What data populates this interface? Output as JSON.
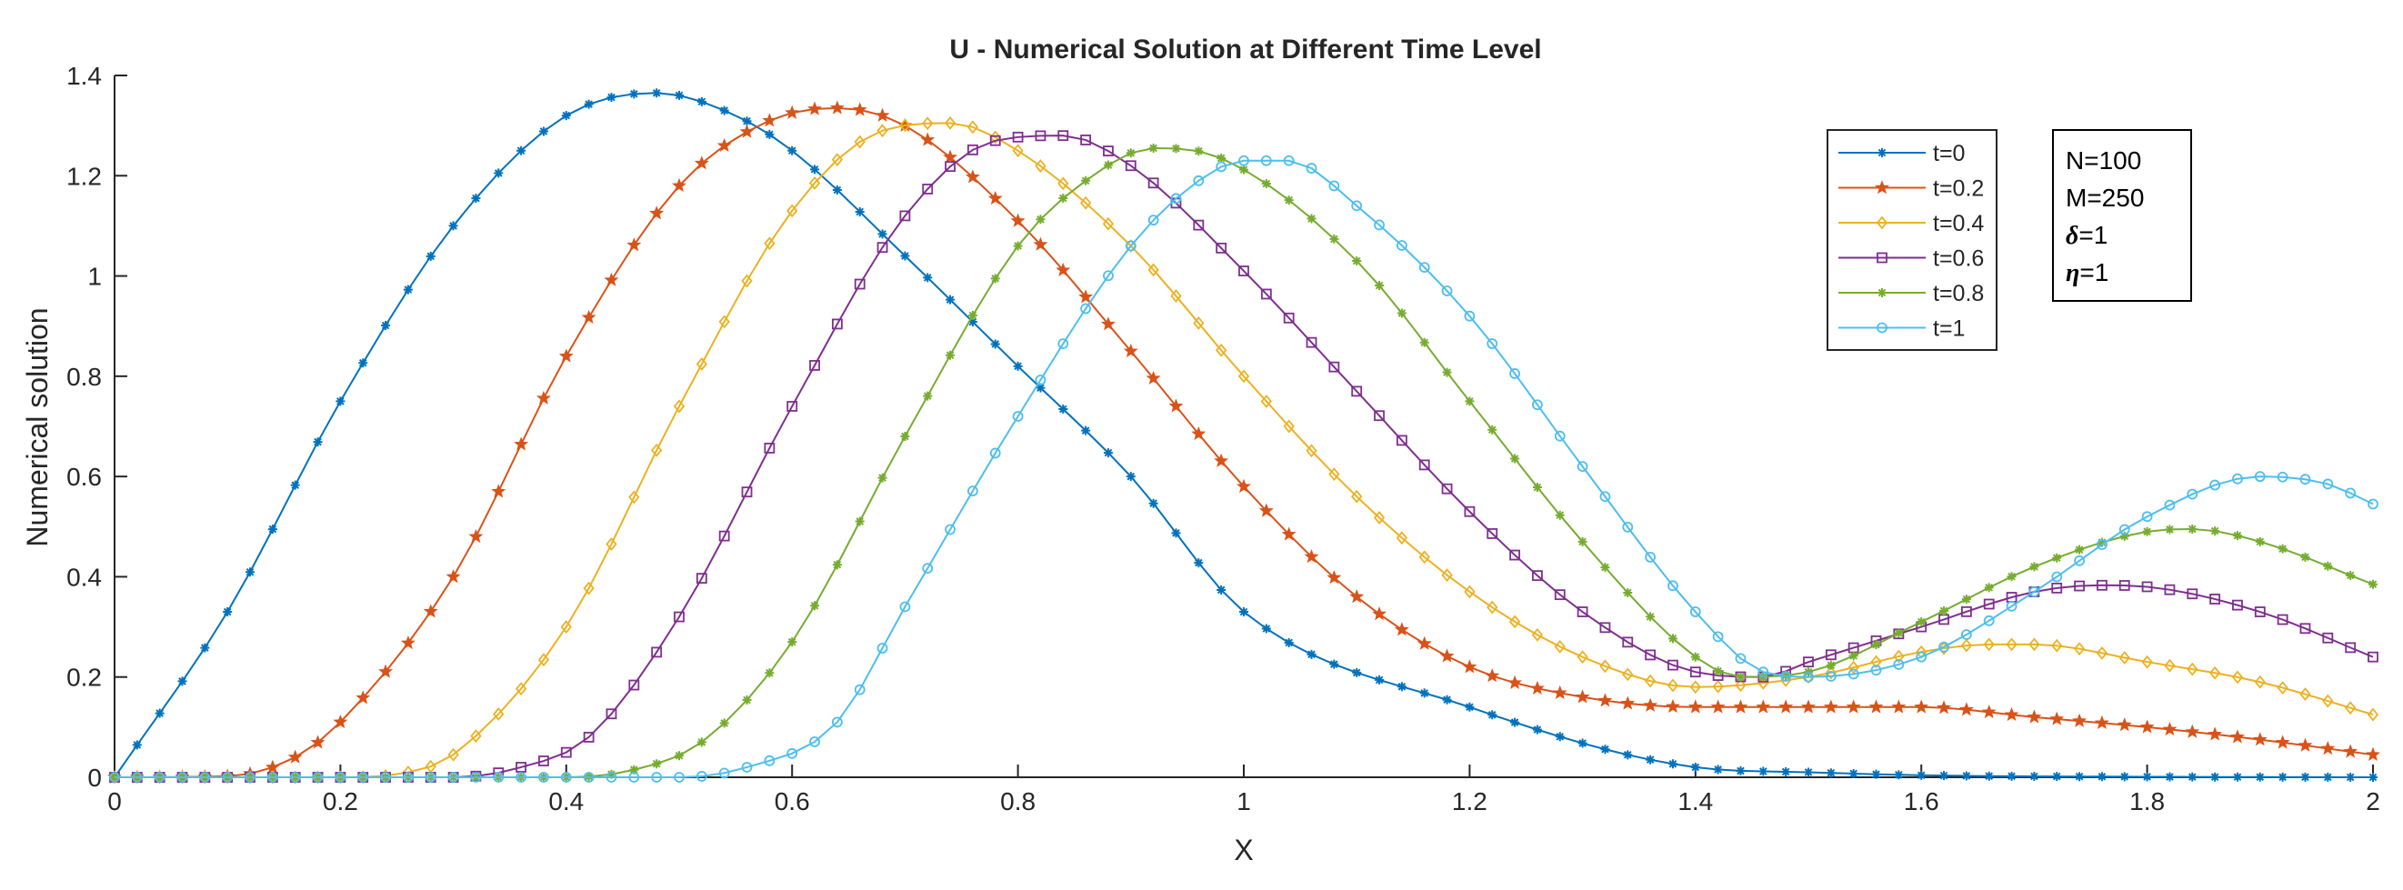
{
  "chart_data": {
    "type": "line",
    "title": "U - Numerical Solution at Different Time Level",
    "xlabel": "X",
    "ylabel": "Numerical solution",
    "xlim": [
      0,
      2
    ],
    "ylim": [
      0,
      1.4
    ],
    "xticks": [
      0,
      0.2,
      0.4,
      0.6,
      0.8,
      1,
      1.2,
      1.4,
      1.6,
      1.8,
      2
    ],
    "xtick_labels": [
      "0",
      "0.2",
      "0.4",
      "0.6",
      "0.8",
      "1",
      "1.2",
      "1.4",
      "1.6",
      "1.8",
      "2"
    ],
    "yticks": [
      0,
      0.2,
      0.4,
      0.6,
      0.8,
      1,
      1.2,
      1.4
    ],
    "ytick_labels": [
      "0",
      "0.2",
      "0.4",
      "0.6",
      "0.8",
      "1",
      "1.2",
      "1.4"
    ],
    "grid": false,
    "legend_position": "top-right",
    "x_step": 0.02,
    "series": [
      {
        "name": "t=0",
        "color": "#0072BD",
        "marker": "asterisk",
        "knots": [
          [
            0,
            0
          ],
          [
            0.1,
            0.33
          ],
          [
            0.2,
            0.75
          ],
          [
            0.3,
            1.1
          ],
          [
            0.4,
            1.32
          ],
          [
            0.48,
            1.365
          ],
          [
            0.55,
            1.32
          ],
          [
            0.6,
            1.25
          ],
          [
            0.7,
            1.04
          ],
          [
            0.8,
            0.82
          ],
          [
            0.9,
            0.6
          ],
          [
            1.0,
            0.33
          ],
          [
            1.2,
            0.14
          ],
          [
            1.4,
            0.02
          ],
          [
            1.5,
            0.01
          ],
          [
            1.6,
            0.004
          ],
          [
            1.8,
            0.001
          ],
          [
            2.0,
            0.0
          ]
        ]
      },
      {
        "name": "t=0.2",
        "color": "#D95319",
        "marker": "star",
        "knots": [
          [
            0,
            0
          ],
          [
            0.1,
            0.002
          ],
          [
            0.16,
            0.04
          ],
          [
            0.2,
            0.11
          ],
          [
            0.3,
            0.4
          ],
          [
            0.4,
            0.84
          ],
          [
            0.5,
            1.18
          ],
          [
            0.58,
            1.31
          ],
          [
            0.64,
            1.335
          ],
          [
            0.7,
            1.3
          ],
          [
            0.8,
            1.11
          ],
          [
            0.9,
            0.85
          ],
          [
            1.0,
            0.58
          ],
          [
            1.1,
            0.36
          ],
          [
            1.2,
            0.22
          ],
          [
            1.3,
            0.16
          ],
          [
            1.4,
            0.14
          ],
          [
            1.5,
            0.14
          ],
          [
            1.6,
            0.14
          ],
          [
            1.7,
            0.12
          ],
          [
            1.8,
            0.1
          ],
          [
            1.9,
            0.075
          ],
          [
            2.0,
            0.045
          ]
        ]
      },
      {
        "name": "t=0.4",
        "color": "#EDB120",
        "marker": "diamond",
        "knots": [
          [
            0,
            0
          ],
          [
            0.2,
            0.0
          ],
          [
            0.26,
            0.01
          ],
          [
            0.3,
            0.045
          ],
          [
            0.4,
            0.3
          ],
          [
            0.5,
            0.74
          ],
          [
            0.6,
            1.13
          ],
          [
            0.68,
            1.29
          ],
          [
            0.74,
            1.305
          ],
          [
            0.8,
            1.25
          ],
          [
            0.9,
            1.06
          ],
          [
            1.0,
            0.8
          ],
          [
            1.1,
            0.56
          ],
          [
            1.2,
            0.37
          ],
          [
            1.3,
            0.24
          ],
          [
            1.4,
            0.18
          ],
          [
            1.5,
            0.2
          ],
          [
            1.6,
            0.25
          ],
          [
            1.66,
            0.265
          ],
          [
            1.7,
            0.265
          ],
          [
            1.8,
            0.23
          ],
          [
            1.9,
            0.19
          ],
          [
            2.0,
            0.125
          ]
        ]
      },
      {
        "name": "t=0.6",
        "color": "#7E2F8E",
        "marker": "square",
        "knots": [
          [
            0,
            0
          ],
          [
            0.3,
            0.0
          ],
          [
            0.36,
            0.02
          ],
          [
            0.42,
            0.08
          ],
          [
            0.5,
            0.32
          ],
          [
            0.6,
            0.74
          ],
          [
            0.7,
            1.12
          ],
          [
            0.78,
            1.27
          ],
          [
            0.84,
            1.28
          ],
          [
            0.9,
            1.22
          ],
          [
            1.0,
            1.01
          ],
          [
            1.1,
            0.77
          ],
          [
            1.2,
            0.53
          ],
          [
            1.3,
            0.33
          ],
          [
            1.4,
            0.21
          ],
          [
            1.46,
            0.2
          ],
          [
            1.5,
            0.23
          ],
          [
            1.6,
            0.3
          ],
          [
            1.7,
            0.37
          ],
          [
            1.76,
            0.383
          ],
          [
            1.8,
            0.38
          ],
          [
            1.9,
            0.33
          ],
          [
            2.0,
            0.24
          ]
        ]
      },
      {
        "name": "t=0.8",
        "color": "#77AC30",
        "marker": "asterisk",
        "knots": [
          [
            0,
            0
          ],
          [
            0.4,
            0.0
          ],
          [
            0.46,
            0.015
          ],
          [
            0.52,
            0.07
          ],
          [
            0.6,
            0.27
          ],
          [
            0.7,
            0.68
          ],
          [
            0.8,
            1.06
          ],
          [
            0.86,
            1.19
          ],
          [
            0.92,
            1.255
          ],
          [
            0.98,
            1.235
          ],
          [
            1.1,
            1.03
          ],
          [
            1.2,
            0.75
          ],
          [
            1.3,
            0.47
          ],
          [
            1.4,
            0.24
          ],
          [
            1.44,
            0.2
          ],
          [
            1.5,
            0.21
          ],
          [
            1.6,
            0.31
          ],
          [
            1.7,
            0.42
          ],
          [
            1.8,
            0.49
          ],
          [
            1.84,
            0.495
          ],
          [
            1.9,
            0.47
          ],
          [
            2.0,
            0.385
          ]
        ]
      },
      {
        "name": "t=1",
        "color": "#4DBEEE",
        "marker": "circle",
        "knots": [
          [
            0,
            0
          ],
          [
            0.5,
            0.0
          ],
          [
            0.56,
            0.02
          ],
          [
            0.64,
            0.11
          ],
          [
            0.7,
            0.34
          ],
          [
            0.8,
            0.72
          ],
          [
            0.9,
            1.06
          ],
          [
            0.96,
            1.19
          ],
          [
            1.0,
            1.23
          ],
          [
            1.04,
            1.23
          ],
          [
            1.1,
            1.14
          ],
          [
            1.2,
            0.92
          ],
          [
            1.3,
            0.62
          ],
          [
            1.4,
            0.33
          ],
          [
            1.46,
            0.21
          ],
          [
            1.5,
            0.2
          ],
          [
            1.6,
            0.24
          ],
          [
            1.7,
            0.37
          ],
          [
            1.8,
            0.52
          ],
          [
            1.9,
            0.6
          ],
          [
            1.96,
            0.585
          ],
          [
            2.0,
            0.545
          ]
        ]
      }
    ]
  },
  "legend": {
    "entries": [
      "t=0",
      "t=0.2",
      "t=0.4",
      "t=0.6",
      "t=0.8",
      "t=1"
    ]
  },
  "params": {
    "n_label": "N=100",
    "m_label": "M=250",
    "delta_symbol": "δ",
    "delta_value": "=1",
    "eta_symbol": "η",
    "eta_value": "=1"
  }
}
